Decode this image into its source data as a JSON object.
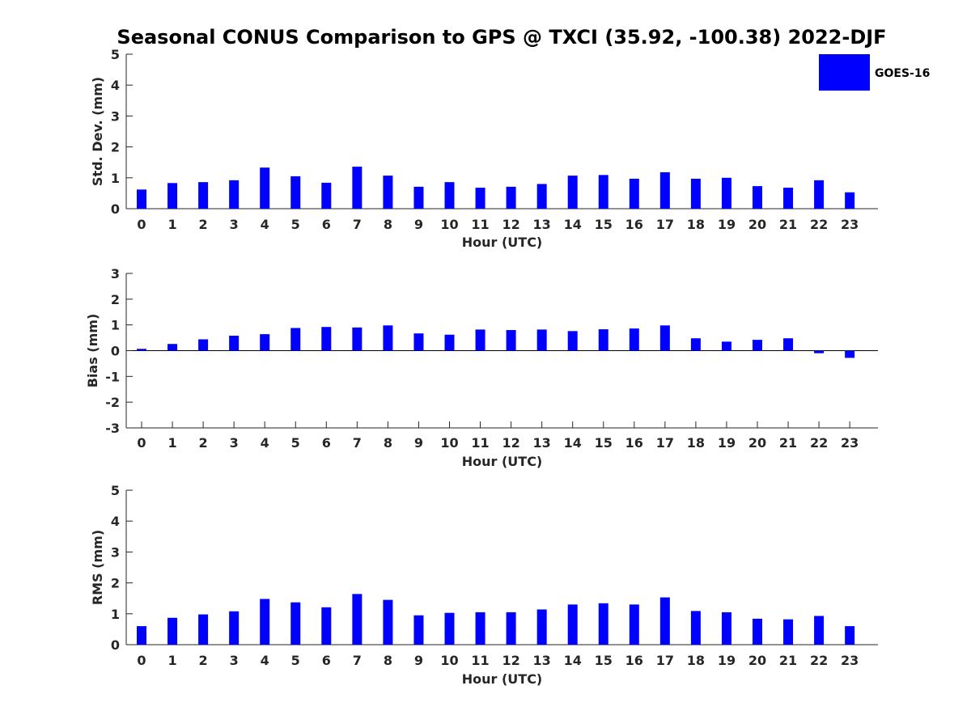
{
  "chart_data": {
    "type": "bar",
    "title": "Seasonal CONUS Comparison to GPS @ TXCI (35.92, -100.38) 2022-DJF",
    "bar_color": "#0000ff",
    "legend": {
      "label": "GOES-16",
      "position": "top-right"
    },
    "categories": [
      "0",
      "1",
      "2",
      "3",
      "4",
      "5",
      "6",
      "7",
      "8",
      "9",
      "10",
      "11",
      "12",
      "13",
      "14",
      "15",
      "16",
      "17",
      "18",
      "19",
      "20",
      "21",
      "22",
      "23"
    ],
    "panels": [
      {
        "name": "std-dev",
        "ylabel": "Std. Dev. (mm)",
        "xlabel": "Hour (UTC)",
        "ylim": [
          0,
          5
        ],
        "yticks": [
          0,
          1,
          2,
          3,
          4,
          5
        ],
        "values": [
          0.62,
          0.83,
          0.86,
          0.92,
          1.33,
          1.05,
          0.84,
          1.36,
          1.07,
          0.71,
          0.86,
          0.68,
          0.71,
          0.8,
          1.07,
          1.09,
          0.97,
          1.18,
          0.97,
          1.0,
          0.73,
          0.68,
          0.92,
          0.53
        ]
      },
      {
        "name": "bias",
        "ylabel": "Bias (mm)",
        "xlabel": "Hour (UTC)",
        "ylim": [
          -3,
          3
        ],
        "yticks": [
          -3,
          -2,
          -1,
          0,
          1,
          2,
          3
        ],
        "values": [
          0.07,
          0.26,
          0.44,
          0.58,
          0.64,
          0.88,
          0.92,
          0.9,
          0.98,
          0.67,
          0.62,
          0.82,
          0.8,
          0.82,
          0.76,
          0.83,
          0.86,
          0.98,
          0.48,
          0.35,
          0.42,
          0.48,
          -0.1,
          -0.28
        ]
      },
      {
        "name": "rms",
        "ylabel": "RMS (mm)",
        "xlabel": "Hour (UTC)",
        "ylim": [
          0,
          5
        ],
        "yticks": [
          0,
          1,
          2,
          3,
          4,
          5
        ],
        "values": [
          0.6,
          0.87,
          0.98,
          1.08,
          1.48,
          1.37,
          1.21,
          1.64,
          1.45,
          0.95,
          1.03,
          1.05,
          1.05,
          1.14,
          1.3,
          1.34,
          1.3,
          1.53,
          1.09,
          1.05,
          0.84,
          0.82,
          0.93,
          0.6
        ]
      }
    ]
  }
}
